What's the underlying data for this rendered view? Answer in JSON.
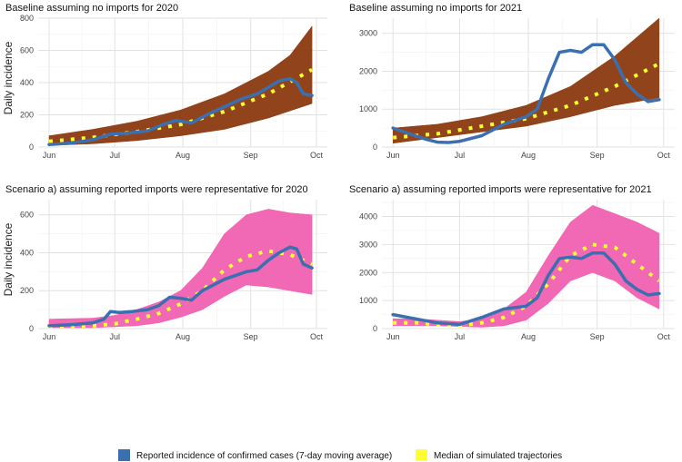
{
  "ylabel": "Daily incidence",
  "legend": {
    "reported_label": "Reported incidence of confirmed cases (7-day moving average)",
    "median_label": "Median of simulated trajectories",
    "reported_color": "#3a6fb0",
    "median_color": "#ffff33"
  },
  "chart_data": [
    {
      "type": "line",
      "title": "Baseline assuming no imports for 2020",
      "xlabel": "",
      "ylabel": "Daily incidence",
      "x_ticks": [
        "Jun",
        "Jul",
        "Aug",
        "Sep",
        "Oct"
      ],
      "x_tick_days": [
        0,
        30,
        61,
        92,
        122
      ],
      "xlim": [
        -5,
        127
      ],
      "y_ticks": [
        0,
        200,
        400,
        600,
        800
      ],
      "ylim": [
        0,
        800
      ],
      "band_color": "#8b3a0f",
      "series": [
        {
          "name": "Reported incidence of confirmed cases (7-day moving average)",
          "role": "reported",
          "x": [
            0,
            10,
            20,
            28,
            35,
            45,
            52,
            58,
            65,
            72,
            80,
            88,
            95,
            100,
            105,
            110,
            113,
            116,
            120
          ],
          "values": [
            15,
            25,
            45,
            80,
            85,
            100,
            140,
            165,
            150,
            200,
            250,
            300,
            330,
            370,
            410,
            425,
            400,
            330,
            320
          ]
        },
        {
          "name": "Median of simulated trajectories",
          "role": "median",
          "x": [
            0,
            20,
            40,
            60,
            80,
            100,
            120
          ],
          "values": [
            35,
            60,
            95,
            140,
            220,
            330,
            480
          ]
        },
        {
          "name": "Simulated lower",
          "role": "lower",
          "x": [
            0,
            20,
            40,
            60,
            80,
            100,
            120
          ],
          "values": [
            10,
            20,
            40,
            70,
            110,
            180,
            270
          ]
        },
        {
          "name": "Simulated upper",
          "role": "upper",
          "x": [
            0,
            20,
            40,
            60,
            80,
            100,
            110,
            120
          ],
          "values": [
            70,
            110,
            160,
            230,
            330,
            470,
            570,
            750
          ]
        }
      ]
    },
    {
      "type": "line",
      "title": "Baseline assuming no imports for 2021",
      "xlabel": "",
      "ylabel": "",
      "x_ticks": [
        "Jun",
        "Jul",
        "Aug",
        "Sep",
        "Oct"
      ],
      "x_tick_days": [
        0,
        30,
        61,
        92,
        122
      ],
      "xlim": [
        -5,
        127
      ],
      "y_ticks": [
        0,
        1000,
        2000,
        3000
      ],
      "ylim": [
        0,
        3400
      ],
      "band_color": "#8b3a0f",
      "series": [
        {
          "name": "Reported incidence of confirmed cases (7-day moving average)",
          "role": "reported",
          "x": [
            0,
            10,
            15,
            20,
            25,
            30,
            40,
            50,
            60,
            65,
            70,
            75,
            80,
            85,
            90,
            95,
            100,
            105,
            110,
            115,
            120
          ],
          "values": [
            500,
            300,
            200,
            130,
            120,
            150,
            300,
            600,
            800,
            1000,
            1800,
            2500,
            2550,
            2500,
            2700,
            2700,
            2300,
            1700,
            1400,
            1200,
            1250
          ]
        },
        {
          "name": "Median of simulated trajectories",
          "role": "median",
          "x": [
            0,
            20,
            40,
            60,
            80,
            100,
            120
          ],
          "values": [
            250,
            350,
            550,
            750,
            1100,
            1600,
            2200
          ]
        },
        {
          "name": "Simulated lower",
          "role": "lower",
          "x": [
            0,
            20,
            40,
            60,
            80,
            100,
            120
          ],
          "values": [
            100,
            250,
            400,
            550,
            800,
            1100,
            1300
          ]
        },
        {
          "name": "Simulated upper",
          "role": "upper",
          "x": [
            0,
            20,
            40,
            60,
            80,
            100,
            120
          ],
          "values": [
            500,
            600,
            800,
            1100,
            1600,
            2400,
            3400
          ]
        }
      ]
    },
    {
      "type": "line",
      "title": "Scenario a) assuming reported imports were representative for 2020",
      "xlabel": "",
      "ylabel": "Daily incidence",
      "x_ticks": [
        "Jun",
        "Jul",
        "Aug",
        "Sep",
        "Oct"
      ],
      "x_tick_days": [
        0,
        30,
        61,
        92,
        122
      ],
      "xlim": [
        -5,
        127
      ],
      "y_ticks": [
        0,
        200,
        400,
        600
      ],
      "ylim": [
        0,
        680
      ],
      "band_color": "#f060b0",
      "series": [
        {
          "name": "Reported incidence of confirmed cases (7-day moving average)",
          "role": "reported",
          "x": [
            0,
            10,
            20,
            25,
            28,
            32,
            38,
            45,
            50,
            55,
            60,
            65,
            70,
            80,
            90,
            95,
            100,
            105,
            110,
            113,
            116,
            120
          ],
          "values": [
            15,
            20,
            30,
            50,
            90,
            85,
            90,
            100,
            120,
            165,
            160,
            150,
            200,
            260,
            300,
            310,
            360,
            400,
            430,
            420,
            340,
            320
          ]
        },
        {
          "name": "Median of simulated trajectories",
          "role": "median",
          "x": [
            0,
            20,
            30,
            40,
            50,
            60,
            70,
            80,
            90,
            100,
            110,
            120
          ],
          "values": [
            10,
            15,
            25,
            50,
            80,
            130,
            200,
            310,
            380,
            410,
            390,
            340
          ]
        },
        {
          "name": "Simulated lower",
          "role": "lower",
          "x": [
            0,
            20,
            40,
            50,
            60,
            70,
            80,
            90,
            100,
            110,
            120
          ],
          "values": [
            5,
            5,
            15,
            30,
            60,
            100,
            170,
            230,
            220,
            200,
            180
          ]
        },
        {
          "name": "Simulated upper",
          "role": "upper",
          "x": [
            0,
            20,
            30,
            40,
            50,
            60,
            70,
            80,
            90,
            100,
            110,
            120
          ],
          "values": [
            50,
            55,
            70,
            100,
            140,
            200,
            320,
            500,
            600,
            630,
            610,
            600
          ]
        }
      ]
    },
    {
      "type": "line",
      "title": "Scenario a) assuming reported imports were representative for 2021",
      "xlabel": "",
      "ylabel": "",
      "x_ticks": [
        "Jun",
        "Jul",
        "Aug",
        "Sep",
        "Oct"
      ],
      "x_tick_days": [
        0,
        30,
        61,
        92,
        122
      ],
      "xlim": [
        -5,
        127
      ],
      "y_ticks": [
        0,
        1000,
        2000,
        3000,
        4000
      ],
      "ylim": [
        0,
        4600
      ],
      "band_color": "#f060b0",
      "series": [
        {
          "name": "Reported incidence of confirmed cases (7-day moving average)",
          "role": "reported",
          "x": [
            0,
            10,
            20,
            30,
            40,
            50,
            60,
            65,
            70,
            75,
            80,
            85,
            90,
            95,
            100,
            105,
            110,
            115,
            120
          ],
          "values": [
            500,
            350,
            200,
            150,
            400,
            700,
            800,
            1100,
            1900,
            2500,
            2550,
            2500,
            2700,
            2700,
            2300,
            1700,
            1400,
            1200,
            1250
          ]
        },
        {
          "name": "Median of simulated trajectories",
          "role": "median",
          "x": [
            0,
            10,
            20,
            30,
            40,
            50,
            60,
            70,
            80,
            90,
            100,
            110,
            120
          ],
          "values": [
            200,
            200,
            150,
            100,
            200,
            400,
            800,
            1600,
            2600,
            3000,
            2900,
            2300,
            1700
          ]
        },
        {
          "name": "Simulated lower",
          "role": "lower",
          "x": [
            0,
            20,
            40,
            50,
            60,
            70,
            80,
            90,
            100,
            110,
            120
          ],
          "values": [
            100,
            100,
            50,
            100,
            300,
            900,
            1700,
            2000,
            1700,
            1100,
            700
          ]
        },
        {
          "name": "Simulated upper",
          "role": "upper",
          "x": [
            0,
            10,
            20,
            30,
            40,
            50,
            60,
            70,
            80,
            90,
            100,
            110,
            120
          ],
          "values": [
            350,
            350,
            300,
            250,
            350,
            700,
            1300,
            2600,
            3800,
            4400,
            4100,
            3800,
            3400
          ]
        }
      ]
    }
  ]
}
